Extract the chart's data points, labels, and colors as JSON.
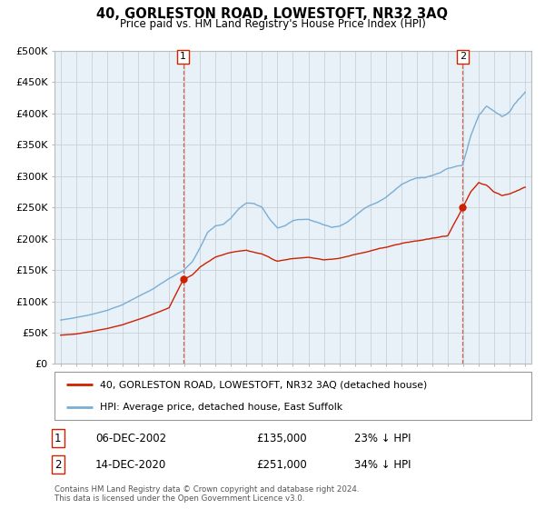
{
  "title": "40, GORLESTON ROAD, LOWESTOFT, NR32 3AQ",
  "subtitle": "Price paid vs. HM Land Registry's House Price Index (HPI)",
  "legend_label_red": "40, GORLESTON ROAD, LOWESTOFT, NR32 3AQ (detached house)",
  "legend_label_blue": "HPI: Average price, detached house, East Suffolk",
  "sale1_date": "06-DEC-2002",
  "sale1_price": "£135,000",
  "sale1_hpi": "23% ↓ HPI",
  "sale1_year": 2002.917,
  "sale1_value": 135000,
  "sale2_date": "14-DEC-2020",
  "sale2_price": "£251,000",
  "sale2_hpi": "34% ↓ HPI",
  "sale2_year": 2020.958,
  "sale2_value": 251000,
  "footer": "Contains HM Land Registry data © Crown copyright and database right 2024.\nThis data is licensed under the Open Government Licence v3.0.",
  "ylim": [
    0,
    500000
  ],
  "yticks": [
    0,
    50000,
    100000,
    150000,
    200000,
    250000,
    300000,
    350000,
    400000,
    450000,
    500000
  ],
  "ytick_labels": [
    "£0",
    "£50K",
    "£100K",
    "£150K",
    "£200K",
    "£250K",
    "£300K",
    "£350K",
    "£400K",
    "£450K",
    "£500K"
  ],
  "hpi_color": "#7aaed4",
  "price_color": "#cc2200",
  "bg_plot_color": "#e8f0f8",
  "bg_color": "#ffffff",
  "grid_color": "#c8d0d8"
}
